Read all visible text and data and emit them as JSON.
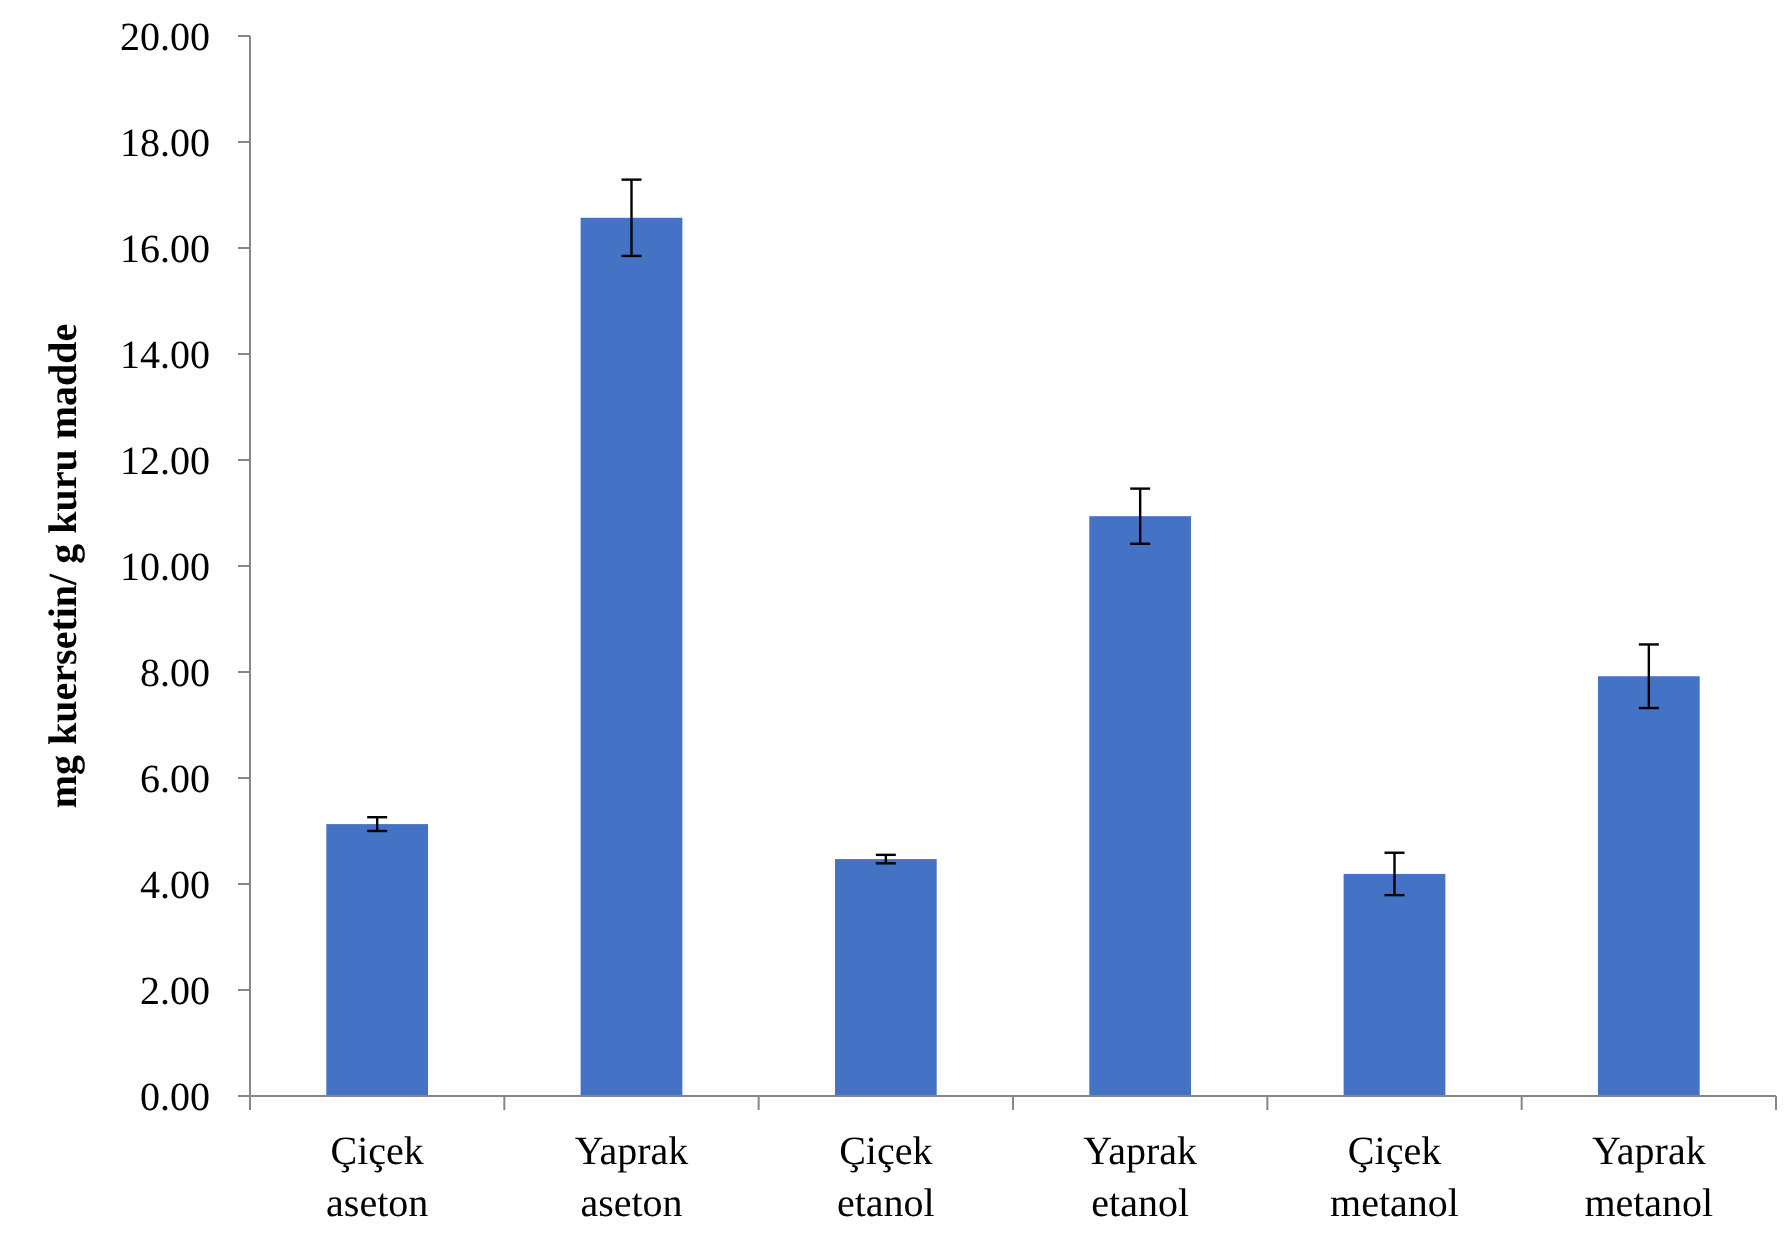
{
  "chart_data": {
    "type": "bar",
    "ylabel": "mg kuersetin/ g kuru madde",
    "categories": [
      "Çiçek aseton",
      "Yaprak aseton",
      "Çiçek etanol",
      "Yaprak etanol",
      "Çiçek metanol",
      "Yaprak metanol"
    ],
    "values": [
      5.13,
      16.57,
      4.47,
      10.94,
      4.19,
      7.92
    ],
    "errors": [
      0.13,
      0.72,
      0.08,
      0.52,
      0.4,
      0.6
    ],
    "color": "#4472c4",
    "ylim": [
      0,
      20
    ],
    "yticks": [
      {
        "value": 0,
        "label": "0.00"
      },
      {
        "value": 2,
        "label": "2.00"
      },
      {
        "value": 4,
        "label": "4.00"
      },
      {
        "value": 6,
        "label": "6.00"
      },
      {
        "value": 8,
        "label": "8.00"
      },
      {
        "value": 10,
        "label": "10.00"
      },
      {
        "value": 12,
        "label": "12.00"
      },
      {
        "value": 14,
        "label": "14.00"
      },
      {
        "value": 16,
        "label": "16.00"
      },
      {
        "value": 18,
        "label": "18.00"
      },
      {
        "value": 20,
        "label": "20.00"
      }
    ],
    "grid": false
  }
}
